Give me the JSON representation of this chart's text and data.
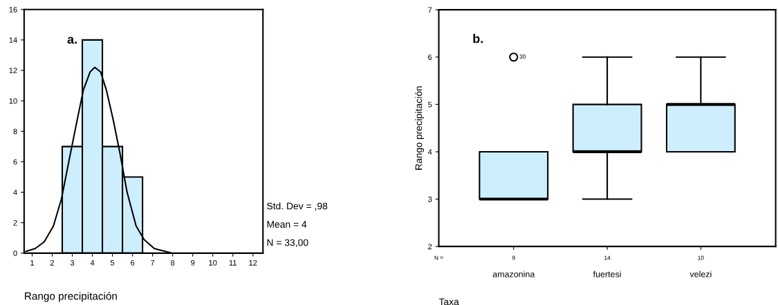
{
  "chart_data": [
    {
      "type": "histogram",
      "bins": [
        2.5,
        3.5,
        4.5,
        5.5,
        6.5
      ],
      "values": [
        7,
        14,
        7,
        5
      ],
      "color": "#cdeefd",
      "xlim": [
        0.6,
        12.5
      ],
      "xticks": [
        1,
        2,
        3,
        4,
        5,
        6,
        7,
        8,
        9,
        10,
        11,
        12
      ],
      "ylim": [
        0,
        16
      ],
      "yticks": [
        0,
        2,
        4,
        6,
        8,
        10,
        12,
        14,
        16
      ],
      "xlabel": "Rango precipitación",
      "series": [
        {
          "type": "line",
          "color": "#000000",
          "x": [
            0.69,
            1.15,
            1.6,
            2.06,
            2.46,
            2.86,
            3.2,
            3.55,
            3.89,
            4.12,
            4.41,
            4.7,
            5.04,
            5.38,
            5.73,
            6.18,
            6.58,
            7.09,
            7.89
          ],
          "values": [
            0.12,
            0.3,
            0.74,
            1.78,
            3.56,
            6.23,
            8.46,
            10.7,
            11.9,
            12.2,
            11.9,
            10.7,
            8.75,
            6.53,
            4.0,
            1.78,
            0.89,
            0.3,
            0.03
          ]
        }
      ],
      "annotations": [
        "a.",
        "Std. Dev = ,98",
        "Mean = 4",
        "N = 33,00"
      ]
    },
    {
      "type": "box",
      "categories": [
        "amazonina",
        "fuertesi",
        "velezi"
      ],
      "color": "#cdeefd",
      "boxes": [
        {
          "low": 3,
          "q1": 3,
          "median": 3,
          "q3": 4,
          "high": 4,
          "outliers": [
            6
          ]
        },
        {
          "low": 3,
          "q1": 4,
          "median": 4,
          "q3": 5,
          "high": 6
        },
        {
          "low": 4,
          "q1": 4,
          "median": 5,
          "q3": 5,
          "high": 6
        }
      ],
      "ylim": [
        2,
        7
      ],
      "yticks": [
        2,
        3,
        4,
        5,
        6,
        7
      ],
      "ylabel": "Rango precipitación",
      "xlabel": "Taxa",
      "annotations": [
        "b.",
        "30",
        "N =",
        "9",
        "14",
        "10"
      ]
    }
  ]
}
